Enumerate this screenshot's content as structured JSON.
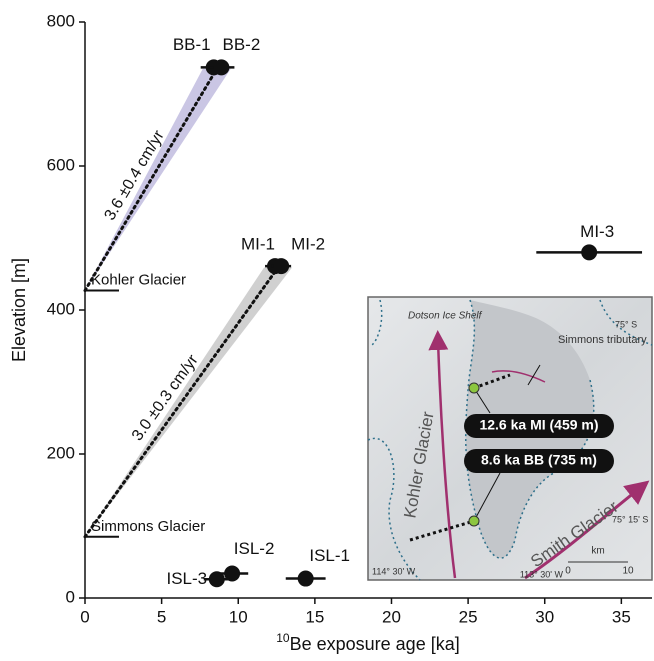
{
  "chart_data": {
    "type": "scatter",
    "ylabel": "Elevation [m]",
    "xlabel_sup": "10",
    "xlabel": "Be exposure age [ka]",
    "xlim": [
      0,
      37
    ],
    "ylim": [
      0,
      800
    ],
    "xticks": [
      0,
      5,
      10,
      15,
      20,
      25,
      30,
      35
    ],
    "yticks": [
      0,
      200,
      400,
      600,
      800
    ],
    "color": "#111111",
    "labels": [
      "BB-1",
      "BB-2",
      "MI-1",
      "MI-2",
      "MI-3",
      "ISL-1",
      "ISL-2",
      "ISL-3"
    ],
    "x": [
      8.4,
      8.9,
      12.4,
      12.8,
      32.9,
      14.4,
      9.6,
      8.6
    ],
    "y": [
      737,
      737,
      461,
      461,
      480,
      27,
      34,
      26
    ],
    "xerr": [
      0.85,
      0.85,
      0.65,
      0.65,
      3.45,
      1.3,
      1.05,
      0.85
    ],
    "reference_lines": [
      {
        "label": "Kohler Glacier",
        "y": 427
      },
      {
        "label": "Simmons Glacier",
        "y": 85
      }
    ],
    "trends": [
      {
        "label": "3.6 ±0.4 cm/yr",
        "x": [
          0,
          8.6
        ],
        "y": [
          427,
          735
        ],
        "color": "#bdb8dd"
      },
      {
        "label": "3.0 ±0.3 cm/yr",
        "x": [
          0,
          12.6
        ],
        "y": [
          85,
          459
        ],
        "color": "#c4c4c4"
      }
    ]
  },
  "map": {
    "shelf": "Dotson Ice Shelf",
    "tributary": "Simmons tributary",
    "lat1": "75° S",
    "lat2": "75° 15' S",
    "kohler": "Kohler Glacier",
    "smith": "Smith Glacier",
    "callout1": "12.6 ka MI (459 m)",
    "callout2": "8.6 ka BB (735 m)",
    "scale_unit": "km",
    "scale_min": "0",
    "scale_max": "10",
    "lon1": "114° 30' W",
    "lon2": "113° 30' W"
  }
}
